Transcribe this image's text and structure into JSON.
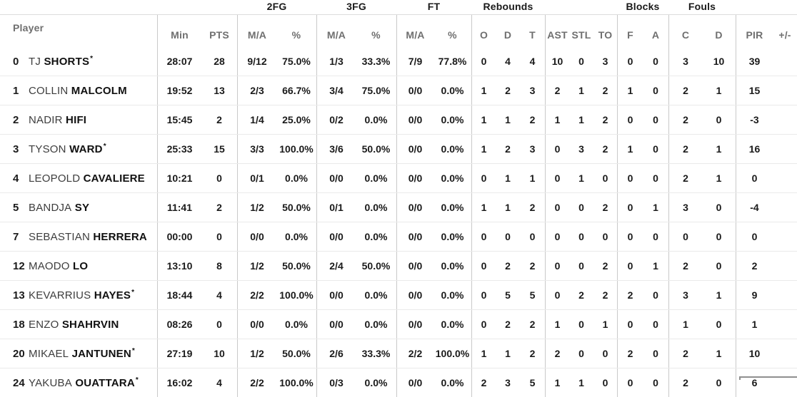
{
  "table": {
    "groups": {
      "fg2": "2FG",
      "fg3": "3FG",
      "ft": "FT",
      "rebounds": "Rebounds",
      "blocks": "Blocks",
      "fouls": "Fouls"
    },
    "columns": {
      "player": "Player",
      "min": "Min",
      "pts": "PTS",
      "fg2_ma": "M/A",
      "fg2_pct": "%",
      "fg3_ma": "M/A",
      "fg3_pct": "%",
      "ft_ma": "M/A",
      "ft_pct": "%",
      "reb_o": "O",
      "reb_d": "D",
      "reb_t": "T",
      "ast": "AST",
      "stl": "STL",
      "to": "TO",
      "blk_f": "F",
      "blk_a": "A",
      "foul_c": "C",
      "foul_d": "D",
      "pir": "PIR",
      "plus_minus": "+/-"
    },
    "starter_mark": "*",
    "rows": [
      {
        "number": "0",
        "first": "TJ",
        "last": "SHORTS",
        "starter": true,
        "min": "28:07",
        "pts": "28",
        "fg2_ma": "9/12",
        "fg2_pct": "75.0%",
        "fg3_ma": "1/3",
        "fg3_pct": "33.3%",
        "ft_ma": "7/9",
        "ft_pct": "77.8%",
        "reb_o": "0",
        "reb_d": "4",
        "reb_t": "4",
        "ast": "10",
        "stl": "0",
        "to": "3",
        "blk_f": "0",
        "blk_a": "0",
        "foul_c": "3",
        "foul_d": "10",
        "pir": "39",
        "plus_minus": ""
      },
      {
        "number": "1",
        "first": "COLLIN",
        "last": "MALCOLM",
        "starter": false,
        "min": "19:52",
        "pts": "13",
        "fg2_ma": "2/3",
        "fg2_pct": "66.7%",
        "fg3_ma": "3/4",
        "fg3_pct": "75.0%",
        "ft_ma": "0/0",
        "ft_pct": "0.0%",
        "reb_o": "1",
        "reb_d": "2",
        "reb_t": "3",
        "ast": "2",
        "stl": "1",
        "to": "2",
        "blk_f": "1",
        "blk_a": "0",
        "foul_c": "2",
        "foul_d": "1",
        "pir": "15",
        "plus_minus": ""
      },
      {
        "number": "2",
        "first": "NADIR",
        "last": "HIFI",
        "starter": false,
        "min": "15:45",
        "pts": "2",
        "fg2_ma": "1/4",
        "fg2_pct": "25.0%",
        "fg3_ma": "0/2",
        "fg3_pct": "0.0%",
        "ft_ma": "0/0",
        "ft_pct": "0.0%",
        "reb_o": "1",
        "reb_d": "1",
        "reb_t": "2",
        "ast": "1",
        "stl": "1",
        "to": "2",
        "blk_f": "0",
        "blk_a": "0",
        "foul_c": "2",
        "foul_d": "0",
        "pir": "-3",
        "plus_minus": ""
      },
      {
        "number": "3",
        "first": "TYSON",
        "last": "WARD",
        "starter": true,
        "min": "25:33",
        "pts": "15",
        "fg2_ma": "3/3",
        "fg2_pct": "100.0%",
        "fg3_ma": "3/6",
        "fg3_pct": "50.0%",
        "ft_ma": "0/0",
        "ft_pct": "0.0%",
        "reb_o": "1",
        "reb_d": "2",
        "reb_t": "3",
        "ast": "0",
        "stl": "3",
        "to": "2",
        "blk_f": "1",
        "blk_a": "0",
        "foul_c": "2",
        "foul_d": "1",
        "pir": "16",
        "plus_minus": ""
      },
      {
        "number": "4",
        "first": "LEOPOLD",
        "last": "CAVALIERE",
        "starter": false,
        "min": "10:21",
        "pts": "0",
        "fg2_ma": "0/1",
        "fg2_pct": "0.0%",
        "fg3_ma": "0/0",
        "fg3_pct": "0.0%",
        "ft_ma": "0/0",
        "ft_pct": "0.0%",
        "reb_o": "0",
        "reb_d": "1",
        "reb_t": "1",
        "ast": "0",
        "stl": "1",
        "to": "0",
        "blk_f": "0",
        "blk_a": "0",
        "foul_c": "2",
        "foul_d": "1",
        "pir": "0",
        "plus_minus": ""
      },
      {
        "number": "5",
        "first": "BANDJA",
        "last": "SY",
        "starter": false,
        "min": "11:41",
        "pts": "2",
        "fg2_ma": "1/2",
        "fg2_pct": "50.0%",
        "fg3_ma": "0/1",
        "fg3_pct": "0.0%",
        "ft_ma": "0/0",
        "ft_pct": "0.0%",
        "reb_o": "1",
        "reb_d": "1",
        "reb_t": "2",
        "ast": "0",
        "stl": "0",
        "to": "2",
        "blk_f": "0",
        "blk_a": "1",
        "foul_c": "3",
        "foul_d": "0",
        "pir": "-4",
        "plus_minus": ""
      },
      {
        "number": "7",
        "first": "SEBASTIAN",
        "last": "HERRERA",
        "starter": false,
        "min": "00:00",
        "pts": "0",
        "fg2_ma": "0/0",
        "fg2_pct": "0.0%",
        "fg3_ma": "0/0",
        "fg3_pct": "0.0%",
        "ft_ma": "0/0",
        "ft_pct": "0.0%",
        "reb_o": "0",
        "reb_d": "0",
        "reb_t": "0",
        "ast": "0",
        "stl": "0",
        "to": "0",
        "blk_f": "0",
        "blk_a": "0",
        "foul_c": "0",
        "foul_d": "0",
        "pir": "0",
        "plus_minus": ""
      },
      {
        "number": "12",
        "first": "MAODO",
        "last": "LO",
        "starter": false,
        "min": "13:10",
        "pts": "8",
        "fg2_ma": "1/2",
        "fg2_pct": "50.0%",
        "fg3_ma": "2/4",
        "fg3_pct": "50.0%",
        "ft_ma": "0/0",
        "ft_pct": "0.0%",
        "reb_o": "0",
        "reb_d": "2",
        "reb_t": "2",
        "ast": "0",
        "stl": "0",
        "to": "2",
        "blk_f": "0",
        "blk_a": "1",
        "foul_c": "2",
        "foul_d": "0",
        "pir": "2",
        "plus_minus": ""
      },
      {
        "number": "13",
        "first": "KEVARRIUS",
        "last": "HAYES",
        "starter": true,
        "min": "18:44",
        "pts": "4",
        "fg2_ma": "2/2",
        "fg2_pct": "100.0%",
        "fg3_ma": "0/0",
        "fg3_pct": "0.0%",
        "ft_ma": "0/0",
        "ft_pct": "0.0%",
        "reb_o": "0",
        "reb_d": "5",
        "reb_t": "5",
        "ast": "0",
        "stl": "2",
        "to": "2",
        "blk_f": "2",
        "blk_a": "0",
        "foul_c": "3",
        "foul_d": "1",
        "pir": "9",
        "plus_minus": ""
      },
      {
        "number": "18",
        "first": "ENZO",
        "last": "SHAHRVIN",
        "starter": false,
        "min": "08:26",
        "pts": "0",
        "fg2_ma": "0/0",
        "fg2_pct": "0.0%",
        "fg3_ma": "0/0",
        "fg3_pct": "0.0%",
        "ft_ma": "0/0",
        "ft_pct": "0.0%",
        "reb_o": "0",
        "reb_d": "2",
        "reb_t": "2",
        "ast": "1",
        "stl": "0",
        "to": "1",
        "blk_f": "0",
        "blk_a": "0",
        "foul_c": "1",
        "foul_d": "0",
        "pir": "1",
        "plus_minus": ""
      },
      {
        "number": "20",
        "first": "MIKAEL",
        "last": "JANTUNEN",
        "starter": true,
        "min": "27:19",
        "pts": "10",
        "fg2_ma": "1/2",
        "fg2_pct": "50.0%",
        "fg3_ma": "2/6",
        "fg3_pct": "33.3%",
        "ft_ma": "2/2",
        "ft_pct": "100.0%",
        "reb_o": "1",
        "reb_d": "1",
        "reb_t": "2",
        "ast": "2",
        "stl": "0",
        "to": "0",
        "blk_f": "2",
        "blk_a": "0",
        "foul_c": "2",
        "foul_d": "1",
        "pir": "10",
        "plus_minus": ""
      },
      {
        "number": "24",
        "first": "YAKUBA",
        "last": "OUATTARA",
        "starter": true,
        "min": "16:02",
        "pts": "4",
        "fg2_ma": "2/2",
        "fg2_pct": "100.0%",
        "fg3_ma": "0/3",
        "fg3_pct": "0.0%",
        "ft_ma": "0/0",
        "ft_pct": "0.0%",
        "reb_o": "2",
        "reb_d": "3",
        "reb_t": "5",
        "ast": "1",
        "stl": "1",
        "to": "0",
        "blk_f": "0",
        "blk_a": "0",
        "foul_c": "2",
        "foul_d": "0",
        "pir": "6",
        "plus_minus": ""
      }
    ]
  }
}
